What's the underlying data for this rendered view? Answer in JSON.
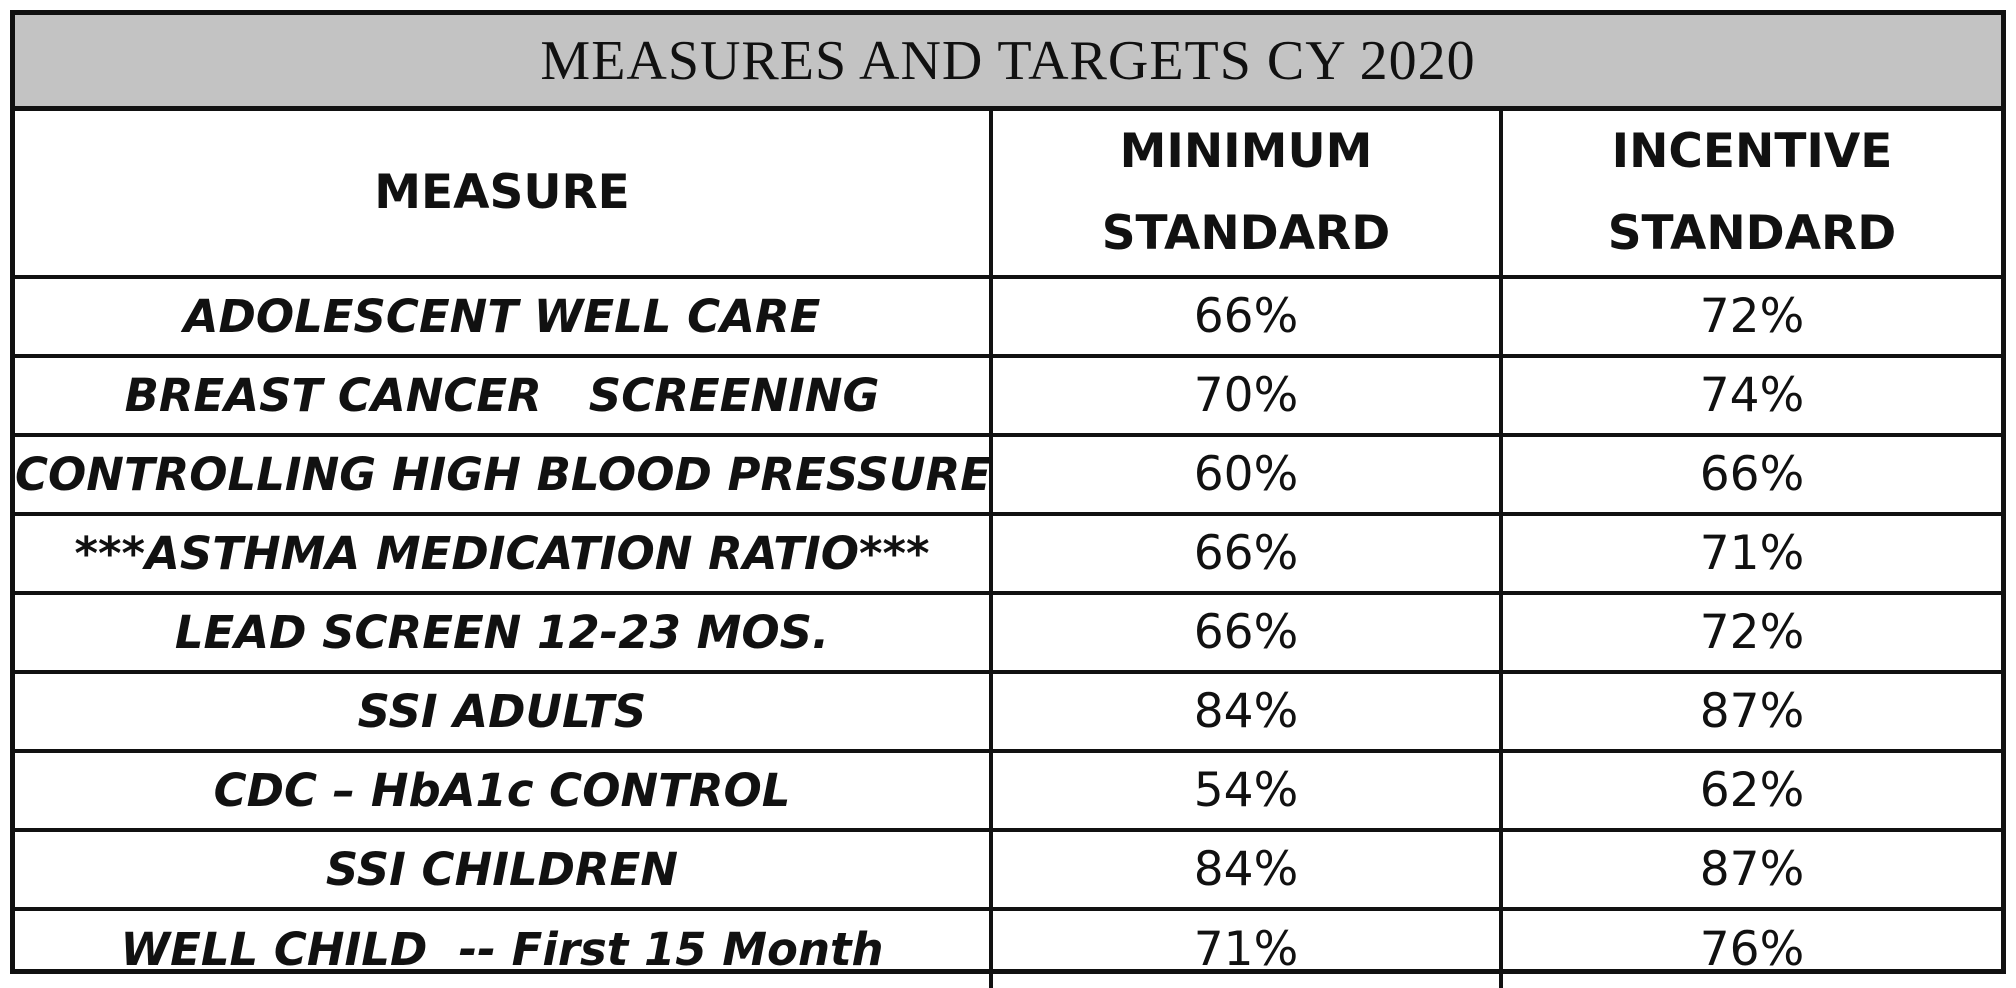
{
  "title": "MEASURES AND TARGETS CY 2020",
  "columns": {
    "measure": "MEASURE",
    "minimum_line1": "MINIMUM",
    "minimum_line2": "STANDARD",
    "incentive_line1": "INCENTIVE",
    "incentive_line2": "STANDARD"
  },
  "rows": [
    {
      "measure": "ADOLESCENT WELL CARE",
      "minimum": "66%",
      "incentive": "72%"
    },
    {
      "measure": "BREAST CANCER   SCREENING",
      "minimum": "70%",
      "incentive": "74%"
    },
    {
      "measure": "CONTROLLING HIGH BLOOD PRESSURE",
      "minimum": "60%",
      "incentive": "66%"
    },
    {
      "measure": "***ASTHMA MEDICATION RATIO***",
      "minimum": "66%",
      "incentive": "71%"
    },
    {
      "measure": "LEAD SCREEN 12-23 MOS.",
      "minimum": "66%",
      "incentive": "72%"
    },
    {
      "measure": "SSI ADULTS",
      "minimum": "84%",
      "incentive": "87%"
    },
    {
      "measure": "CDC – HbA1c CONTROL",
      "minimum": "54%",
      "incentive": "62%"
    },
    {
      "measure": "SSI CHILDREN",
      "minimum": "84%",
      "incentive": "87%"
    },
    {
      "measure": "WELL CHILD  -- First 15 Month",
      "minimum": "71%",
      "incentive": "76%"
    }
  ]
}
